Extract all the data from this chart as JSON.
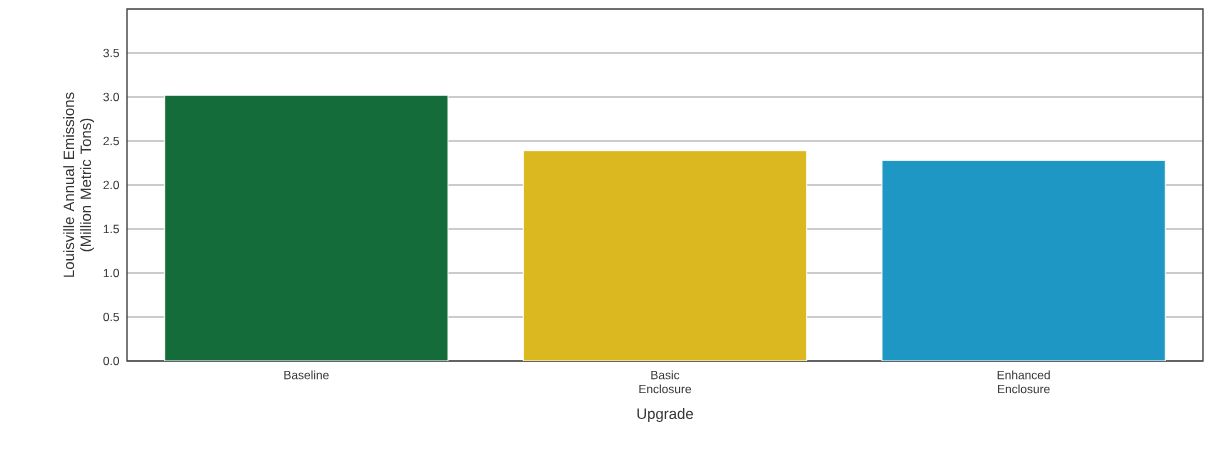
{
  "chart_data": {
    "type": "bar",
    "xlabel": "Upgrade",
    "ylabel": "Louisville Annual Emissions (Million Metric Tons)",
    "categories": [
      "Baseline",
      "Basic Enclosure",
      "Enhanced Enclosure"
    ],
    "values": [
      3.02,
      2.39,
      2.28
    ],
    "colors": [
      "#146c3a",
      "#dbb820",
      "#1e97c4"
    ],
    "ylim": [
      0,
      4
    ],
    "yticks": [
      {
        "value": 0,
        "label": "0.0"
      },
      0.5,
      {
        "value": 1,
        "label": "1.0"
      },
      1.5,
      {
        "value": 2,
        "label": "2.0"
      },
      2.5,
      {
        "value": 3,
        "label": "3.0"
      },
      3.5
    ],
    "grid": "y"
  }
}
